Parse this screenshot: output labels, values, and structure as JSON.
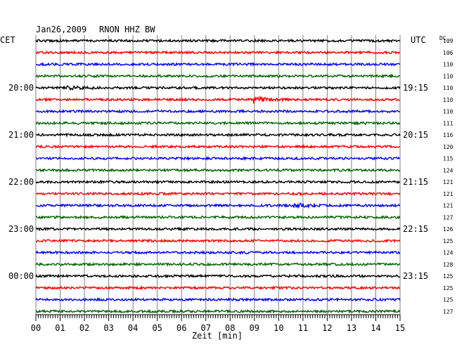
{
  "header": {
    "date": "Jan26,2009",
    "station": "RNON HHZ BW",
    "left_timezone": "CET",
    "right_timezone": "UTC",
    "dc_label": "DC"
  },
  "chart_data": {
    "type": "line",
    "title": "Jan26,2009   RNON HHZ BW",
    "xlabel": "Zeit [min]",
    "x_ticks": [
      "00",
      "01",
      "02",
      "03",
      "04",
      "05",
      "06",
      "07",
      "08",
      "09",
      "10",
      "11",
      "12",
      "13",
      "14",
      "15"
    ],
    "xlim": [
      0,
      15
    ],
    "grid": true,
    "row_colors": [
      "#000000",
      "#ff0000",
      "#0000ff",
      "#006400"
    ],
    "left_hour_labels": [
      "",
      "",
      "",
      "",
      "20:00",
      "",
      "",
      "",
      "21:00",
      "",
      "",
      "",
      "22:00",
      "",
      "",
      "",
      "23:00",
      "",
      "",
      "",
      "00:00",
      "",
      "",
      ""
    ],
    "right_hour_labels": [
      "",
      "",
      "",
      "",
      "19:15",
      "",
      "",
      "",
      "20:15",
      "",
      "",
      "",
      "21:15",
      "",
      "",
      "",
      "22:15",
      "",
      "",
      "",
      "23:15",
      "",
      "",
      ""
    ],
    "dc_offsets": [
      "109",
      "106",
      "110",
      "110",
      "110",
      "110",
      "110",
      "111",
      "116",
      "120",
      "115",
      "124",
      "121",
      "121",
      "121",
      "127",
      "126",
      "125",
      "124",
      "128",
      "125",
      "125",
      "125",
      "127"
    ],
    "events": [
      {
        "row": 4,
        "start_min": 1.2,
        "end_min": 3.1,
        "amp": 2.0
      },
      {
        "row": 5,
        "start_min": 8.95,
        "end_min": 10.2,
        "amp": 5.0
      },
      {
        "row": 14,
        "start_min": 10.6,
        "end_min": 11.8,
        "amp": 4.0
      }
    ]
  }
}
